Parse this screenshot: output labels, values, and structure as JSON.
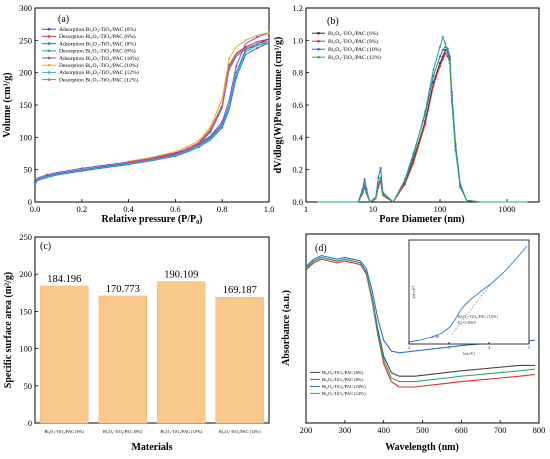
{
  "chart_data": [
    {
      "panel": "(a)",
      "type": "line",
      "xlabel": "Relative pressure (P/P₀)",
      "ylabel": "Volume (cm³/g)",
      "xlim": [
        0,
        1.0
      ],
      "ylim": [
        0,
        300
      ],
      "xticks": [
        "0.0",
        "0.2",
        "0.4",
        "0.6",
        "0.8",
        "1.0"
      ],
      "yticks": [
        "0",
        "50",
        "100",
        "150",
        "200",
        "250",
        "300"
      ],
      "legend_position": "top-left",
      "series": [
        {
          "name": "Adsorption Bi₂O₃-TiO₂/PAC (6%)",
          "color": "#4a4ab8",
          "x": [
            0,
            0.01,
            0.05,
            0.1,
            0.2,
            0.3,
            0.4,
            0.5,
            0.6,
            0.65,
            0.7,
            0.75,
            0.8,
            0.83,
            0.86,
            0.9,
            0.95,
            1.0
          ],
          "y": [
            28,
            35,
            40,
            44,
            50,
            55,
            60,
            66,
            74,
            80,
            88,
            100,
            120,
            150,
            200,
            235,
            245,
            252
          ]
        },
        {
          "name": "Desorption Bi₂O₃-TiO₂/PAC (6%)",
          "color": "#d03a3a",
          "x": [
            1.0,
            0.95,
            0.9,
            0.86,
            0.83,
            0.8,
            0.75,
            0.7,
            0.65,
            0.6,
            0.5,
            0.4
          ],
          "y": [
            252,
            248,
            240,
            230,
            212,
            150,
            112,
            92,
            82,
            75,
            67,
            61
          ]
        },
        {
          "name": "Adsorption Bi₂O₃-TiO₂/PAC (8%)",
          "color": "#2f6fd0",
          "x": [
            0,
            0.01,
            0.05,
            0.1,
            0.2,
            0.3,
            0.4,
            0.5,
            0.6,
            0.65,
            0.7,
            0.75,
            0.8,
            0.83,
            0.86,
            0.9,
            0.95,
            1.0
          ],
          "y": [
            26,
            33,
            38,
            42,
            48,
            53,
            58,
            64,
            71,
            77,
            85,
            96,
            115,
            143,
            192,
            228,
            238,
            246
          ]
        },
        {
          "name": "Desorption Bi₂O₃-TiO₂/PAC (8%)",
          "color": "#2ea86a",
          "x": [
            1.0,
            0.95,
            0.9,
            0.86,
            0.83,
            0.8,
            0.75,
            0.7,
            0.65,
            0.6,
            0.5,
            0.4
          ],
          "y": [
            246,
            242,
            236,
            225,
            205,
            145,
            108,
            89,
            79,
            72,
            65,
            59
          ]
        },
        {
          "name": "Adsorption Bi₂O₃-TiO₂/PAC (10%)",
          "color": "#8a4ac0",
          "x": [
            0,
            0.01,
            0.05,
            0.1,
            0.2,
            0.3,
            0.4,
            0.5,
            0.6,
            0.65,
            0.7,
            0.75,
            0.8,
            0.83,
            0.86,
            0.9,
            0.95,
            1.0
          ],
          "y": [
            30,
            37,
            42,
            46,
            52,
            57,
            62,
            68,
            76,
            82,
            90,
            102,
            124,
            158,
            210,
            245,
            255,
            262
          ]
        },
        {
          "name": "Desorption Bi₂O₃-TiO₂/PAC (10%)",
          "color": "#e0b020",
          "x": [
            1.0,
            0.95,
            0.9,
            0.86,
            0.83,
            0.8,
            0.75,
            0.7,
            0.65,
            0.6,
            0.5,
            0.4
          ],
          "y": [
            262,
            258,
            250,
            240,
            222,
            160,
            116,
            95,
            85,
            78,
            69,
            63
          ]
        },
        {
          "name": "Adsorption Bi₂O₃-TiO₂/PAC (12%)",
          "color": "#20b8c8",
          "x": [
            0,
            0.01,
            0.05,
            0.1,
            0.2,
            0.3,
            0.4,
            0.5,
            0.6,
            0.65,
            0.7,
            0.75,
            0.8,
            0.83,
            0.86,
            0.9,
            0.95,
            1.0
          ],
          "y": [
            27,
            34,
            39,
            43,
            49,
            54,
            59,
            65,
            72,
            78,
            86,
            98,
            118,
            148,
            198,
            232,
            242,
            249
          ]
        },
        {
          "name": "Desorption Bi₂O₃-TiO₂/PAC (12%)",
          "color": "#d050b0",
          "x": [
            1.0,
            0.95,
            0.9,
            0.86,
            0.83,
            0.8,
            0.75,
            0.7,
            0.65,
            0.6,
            0.5,
            0.4
          ],
          "y": [
            249,
            245,
            238,
            228,
            208,
            148,
            110,
            90,
            80,
            73,
            66,
            60
          ]
        }
      ]
    },
    {
      "panel": "(b)",
      "type": "line",
      "xscale": "log",
      "xlabel": "Pore Diameter (nm)",
      "ylabel": "dV/dlog(W)Pore volume (cm³/g)",
      "xlim": [
        1,
        3000
      ],
      "ylim": [
        0,
        1.2
      ],
      "xticks": [
        "1",
        "10",
        "100",
        "1000"
      ],
      "yticks": [
        "0.0",
        "0.2",
        "0.4",
        "0.6",
        "0.8",
        "1.0",
        "1.2"
      ],
      "legend_position": "top-left",
      "series": [
        {
          "name": "Bi₂O₃-TiO₂/PAC (6%)",
          "color": "#333333",
          "x": [
            1.5,
            6,
            7,
            7.5,
            8,
            9,
            11,
            12,
            13,
            14,
            20,
            30,
            40,
            60,
            80,
            100,
            110,
            120,
            130,
            140,
            150,
            170,
            200,
            250,
            400,
            1000,
            2000
          ],
          "y": [
            0,
            0,
            0.06,
            0.1,
            0.06,
            0,
            0.02,
            0.1,
            0.14,
            0.04,
            0,
            0.12,
            0.26,
            0.5,
            0.74,
            0.86,
            0.9,
            0.94,
            0.93,
            0.88,
            0.66,
            0.35,
            0.1,
            0.01,
            0,
            0,
            0
          ]
        },
        {
          "name": "Bi₂O₃-TiO₂/PAC (8%)",
          "color": "#e03030",
          "x": [
            1.5,
            6,
            7,
            7.5,
            8,
            9,
            11,
            12,
            13,
            14,
            20,
            30,
            40,
            60,
            80,
            100,
            110,
            120,
            130,
            140,
            150,
            170,
            200,
            250,
            400,
            1000,
            2000
          ],
          "y": [
            0,
            0,
            0.05,
            0.09,
            0.05,
            0,
            0.02,
            0.09,
            0.13,
            0.04,
            0,
            0.11,
            0.24,
            0.48,
            0.72,
            0.84,
            0.88,
            0.92,
            0.9,
            0.86,
            0.64,
            0.34,
            0.1,
            0.01,
            0,
            0,
            0
          ]
        },
        {
          "name": "Bi₂O₃-TiO₂/PAC (10%)",
          "color": "#2f6fd0",
          "x": [
            1.5,
            6,
            7,
            7.5,
            8,
            9,
            11,
            12,
            13,
            14,
            20,
            30,
            40,
            60,
            80,
            100,
            110,
            120,
            130,
            140,
            150,
            170,
            200,
            250,
            400,
            1000,
            2000
          ],
          "y": [
            0,
            0,
            0.08,
            0.14,
            0.08,
            0,
            0.03,
            0.15,
            0.21,
            0.06,
            0,
            0.14,
            0.3,
            0.54,
            0.78,
            0.9,
            0.94,
            0.96,
            0.95,
            0.9,
            0.68,
            0.36,
            0.11,
            0.01,
            0,
            0,
            0
          ]
        },
        {
          "name": "Bi₂O₃-TiO₂/PAC (12%)",
          "color": "#2ea86a",
          "x": [
            1.5,
            6,
            7,
            7.5,
            8,
            9,
            11,
            12,
            13,
            14,
            20,
            30,
            40,
            60,
            80,
            100,
            110,
            120,
            130,
            140,
            150,
            170,
            200,
            250,
            400,
            1000,
            2000
          ],
          "y": [
            0,
            0,
            0.06,
            0.11,
            0.06,
            0,
            0.02,
            0.11,
            0.15,
            0.05,
            0,
            0.13,
            0.28,
            0.56,
            0.82,
            0.96,
            1.02,
            0.98,
            0.92,
            0.86,
            0.62,
            0.32,
            0.09,
            0.01,
            0,
            0,
            0
          ]
        }
      ]
    },
    {
      "panel": "(c)",
      "type": "bar",
      "xlabel": "Materials",
      "ylabel": "Specific surface area  (m²/g)",
      "ylim": [
        0,
        250
      ],
      "yticks": [
        "0",
        "50",
        "100",
        "150",
        "200",
        "250"
      ],
      "bar_color": "#f8c98a",
      "categories": [
        "Bi₂O₃-TiO₂/PAC (6%)",
        "Bi₂O₃-TiO₂/PAC (8%)",
        "Bi₂O₃-TiO₂/PAC (10%)",
        "Bi₂O₃-TiO₂/PAC (12%)"
      ],
      "values": [
        184.196,
        170.773,
        190.109,
        169.187
      ],
      "value_labels": [
        "184.196",
        "170.773",
        "190.109",
        "169.187"
      ]
    },
    {
      "panel": "(d)",
      "type": "line",
      "xlabel": "Wavelength (nm)",
      "ylabel": "Absorbance (a.u.)",
      "xlim": [
        200,
        800
      ],
      "xticks": [
        "200",
        "300",
        "400",
        "500",
        "600",
        "700",
        "800"
      ],
      "legend_position": "bottom-left",
      "series": [
        {
          "name": "Bi₂O₃-TiO₂/PAC (6%)",
          "color": "#444444",
          "x": [
            200,
            220,
            240,
            260,
            280,
            300,
            320,
            340,
            355,
            370,
            385,
            400,
            420,
            440,
            480,
            520,
            560,
            600,
            650,
            700,
            750,
            790
          ],
          "y": [
            0.86,
            0.9,
            0.92,
            0.91,
            0.9,
            0.91,
            0.9,
            0.89,
            0.84,
            0.7,
            0.52,
            0.37,
            0.28,
            0.26,
            0.26,
            0.27,
            0.28,
            0.29,
            0.3,
            0.31,
            0.32,
            0.32
          ]
        },
        {
          "name": "Bi₂O₃-TiO₂/PAC (8%)",
          "color": "#e03030",
          "x": [
            200,
            220,
            240,
            260,
            280,
            300,
            320,
            340,
            355,
            370,
            385,
            400,
            420,
            440,
            480,
            520,
            560,
            600,
            650,
            700,
            750,
            790
          ],
          "y": [
            0.85,
            0.89,
            0.91,
            0.9,
            0.89,
            0.9,
            0.89,
            0.88,
            0.83,
            0.68,
            0.49,
            0.33,
            0.23,
            0.2,
            0.2,
            0.21,
            0.22,
            0.23,
            0.24,
            0.25,
            0.26,
            0.27
          ]
        },
        {
          "name": "Bi₂O₃-TiO₂/PAC (10%)",
          "color": "#2f6fd0",
          "x": [
            200,
            220,
            240,
            260,
            280,
            300,
            320,
            340,
            355,
            370,
            385,
            400,
            420,
            440,
            480,
            520,
            560,
            600,
            650,
            700,
            750,
            790
          ],
          "y": [
            0.87,
            0.91,
            0.93,
            0.92,
            0.91,
            0.92,
            0.91,
            0.9,
            0.86,
            0.74,
            0.58,
            0.46,
            0.4,
            0.39,
            0.4,
            0.41,
            0.42,
            0.43,
            0.44,
            0.45,
            0.45,
            0.46
          ]
        },
        {
          "name": "Bi₂O₃-TiO₂/PAC (12%)",
          "color": "#2ea86a",
          "x": [
            200,
            220,
            240,
            260,
            280,
            300,
            320,
            340,
            355,
            370,
            385,
            400,
            420,
            440,
            480,
            520,
            560,
            600,
            650,
            700,
            750,
            790
          ],
          "y": [
            0.86,
            0.9,
            0.92,
            0.91,
            0.9,
            0.91,
            0.9,
            0.89,
            0.84,
            0.69,
            0.5,
            0.35,
            0.25,
            0.23,
            0.23,
            0.24,
            0.25,
            0.26,
            0.27,
            0.28,
            0.29,
            0.3
          ]
        }
      ],
      "inset": {
        "ylabel": "(αhv)¹⁄²",
        "xlabel": "hv(eV)",
        "xticks": [
          "2",
          "3",
          "4",
          "5"
        ],
        "annotation": "2. 89",
        "label_line1": "Bi₂O₃-TiO₂/PAC (10%)",
        "label_line2": "E₉=2.89eV"
      }
    }
  ]
}
